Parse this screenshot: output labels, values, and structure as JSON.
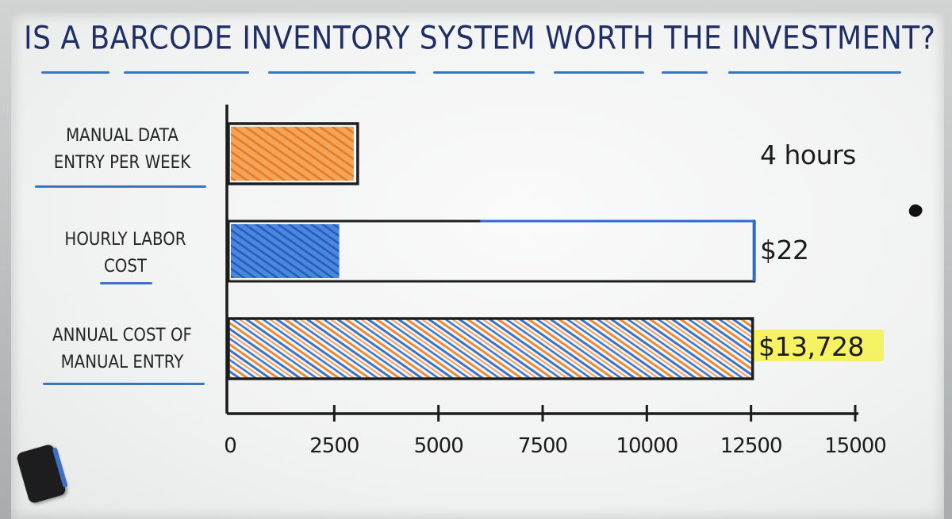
{
  "title": "IS A BARCODE INVENTORY SYSTEM WORTH THE INVESTMENT?",
  "chart_data": {
    "type": "bar",
    "orientation": "horizontal",
    "categories": [
      "MANUAL DATA\nENTRY PER WEEK",
      "HOURLY LABOR\nCOST",
      "ANNUAL COST OF\nMANUAL ENTRY"
    ],
    "values": [
      4,
      22,
      13728
    ],
    "value_labels": [
      "4 hours",
      "$22",
      "$13,728"
    ],
    "bar_colors": [
      "#ef8a2c",
      "#2b6ad0",
      "#3a73c9"
    ],
    "xlim": [
      0,
      15000
    ],
    "xticks": [
      0,
      2500,
      5000,
      7500,
      10000,
      12500,
      15000
    ],
    "xtick_labels": [
      "0",
      "2500",
      "5000",
      "7500",
      "10000",
      "12500",
      "15000"
    ],
    "highlighted_value": "$13,728",
    "highlight_color": "#f6f14a"
  }
}
